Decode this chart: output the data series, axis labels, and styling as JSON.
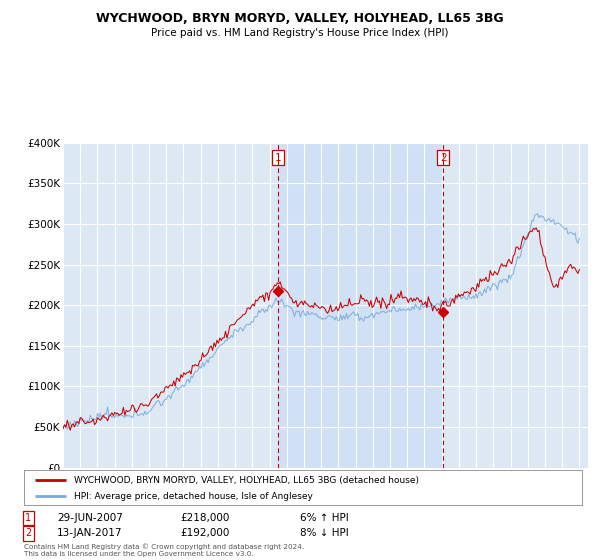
{
  "title": "WYCHWOOD, BRYN MORYD, VALLEY, HOLYHEAD, LL65 3BG",
  "subtitle": "Price paid vs. HM Land Registry's House Price Index (HPI)",
  "legend_line1": "WYCHWOOD, BRYN MORYD, VALLEY, HOLYHEAD, LL65 3BG (detached house)",
  "legend_line2": "HPI: Average price, detached house, Isle of Anglesey",
  "annotation1_label": "1",
  "annotation1_date": "29-JUN-2007",
  "annotation1_price": "£218,000",
  "annotation1_pct": "6% ↑ HPI",
  "annotation2_label": "2",
  "annotation2_date": "13-JAN-2017",
  "annotation2_price": "£192,000",
  "annotation2_pct": "8% ↓ HPI",
  "footnote": "Contains HM Land Registry data © Crown copyright and database right 2024.\nThis data is licensed under the Open Government Licence v3.0.",
  "price_color": "#cc0000",
  "hpi_color": "#7aaadd",
  "background_color": "#dce9f5",
  "highlight_color": "#c8dcf0",
  "ylim": [
    0,
    400000
  ],
  "yticks": [
    0,
    50000,
    100000,
    150000,
    200000,
    250000,
    300000,
    350000,
    400000
  ],
  "ytick_labels": [
    "£0",
    "£50K",
    "£100K",
    "£150K",
    "£200K",
    "£250K",
    "£300K",
    "£350K",
    "£400K"
  ],
  "vline1_x": 2007.5,
  "vline2_x": 2017.08,
  "marker1_x": 2007.5,
  "marker1_y": 218000,
  "marker2_x": 2017.08,
  "marker2_y": 192000,
  "xmin": 1995.0,
  "xmax": 2025.5
}
